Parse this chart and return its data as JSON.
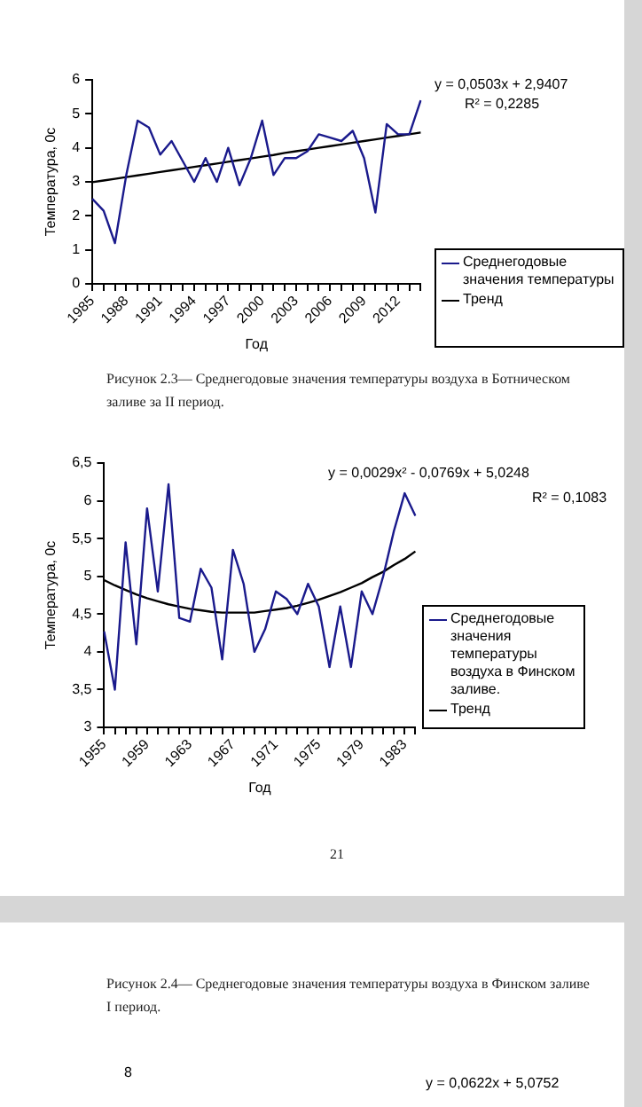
{
  "chart_data": [
    {
      "type": "line",
      "xlabel": "Год",
      "ylabel": "Температура, 0с",
      "legend": "right",
      "marker": "none",
      "line_style": "solid",
      "categories": [
        "1985",
        null,
        null,
        "1988",
        null,
        null,
        "1991",
        null,
        null,
        "1994",
        null,
        null,
        "1997",
        null,
        null,
        "2000",
        null,
        null,
        "2003",
        null,
        null,
        "2006",
        null,
        null,
        "2009",
        null,
        null,
        "2012",
        null,
        null
      ],
      "ylim": [
        0,
        6
      ],
      "yticks": [
        0,
        1,
        2,
        3,
        4,
        5,
        6
      ],
      "series": [
        {
          "name": "Среднегодовые значения температуры",
          "color": "#1a1a8c",
          "values": [
            2.5,
            2.15,
            1.2,
            3.2,
            4.8,
            4.6,
            3.8,
            4.2,
            3.6,
            3.0,
            3.7,
            3.0,
            4.0,
            2.9,
            3.7,
            4.8,
            3.2,
            3.7,
            3.7,
            3.9,
            4.4,
            4.3,
            4.2,
            4.5,
            3.7,
            2.1,
            4.7,
            4.4,
            4.4,
            5.4
          ]
        },
        {
          "name": "Тренд",
          "color": "#000000",
          "values": [
            2.99,
            3.04,
            3.09,
            3.14,
            3.19,
            3.24,
            3.29,
            3.34,
            3.39,
            3.44,
            3.49,
            3.54,
            3.59,
            3.64,
            3.69,
            3.74,
            3.79,
            3.85,
            3.9,
            3.95,
            4.0,
            4.05,
            4.1,
            4.15,
            4.2,
            4.25,
            4.3,
            4.35,
            4.4,
            4.45
          ]
        }
      ],
      "annotations": [
        "y = 0,0503x + 2,9407",
        "R² = 0,2285",
        "Рисунок 2.3— Среднегодовые значения температуры воздуха в Ботническом заливе за II период."
      ]
    },
    {
      "type": "line",
      "xlabel": "Год",
      "ylabel": "Температура, 0с",
      "legend": "right",
      "marker": "none",
      "line_style": "solid",
      "categories": [
        "1955",
        null,
        null,
        null,
        "1959",
        null,
        null,
        null,
        "1963",
        null,
        null,
        null,
        "1967",
        null,
        null,
        null,
        "1971",
        null,
        null,
        null,
        "1975",
        null,
        null,
        null,
        "1979",
        null,
        null,
        null,
        "1983",
        null
      ],
      "ylim": [
        3,
        6.5
      ],
      "yticks": [
        3,
        {
          "value": 3.5,
          "label": "3,5"
        },
        4,
        {
          "value": 4.5,
          "label": "4,5"
        },
        5,
        {
          "value": 5.5,
          "label": "5,5"
        },
        6,
        {
          "value": 6.5,
          "label": "6,5"
        }
      ],
      "series": [
        {
          "name": "Среднегодовые значения температуры воздуха в Финском заливе.",
          "color": "#1a1a8c",
          "values": [
            4.27,
            3.5,
            5.45,
            4.1,
            5.9,
            4.8,
            6.22,
            4.45,
            4.4,
            5.1,
            4.85,
            3.9,
            5.35,
            4.9,
            4.0,
            4.3,
            4.8,
            4.7,
            4.5,
            4.9,
            4.6,
            3.8,
            4.6,
            3.8,
            4.8,
            4.5,
            5.0,
            5.6,
            6.1,
            5.8
          ]
        },
        {
          "name": "Тренд",
          "color": "#000000",
          "values": [
            4.95,
            4.88,
            4.82,
            4.76,
            4.71,
            4.67,
            4.63,
            4.6,
            4.57,
            4.55,
            4.53,
            4.52,
            4.52,
            4.52,
            4.52,
            4.54,
            4.56,
            4.58,
            4.61,
            4.65,
            4.69,
            4.74,
            4.79,
            4.85,
            4.91,
            4.99,
            5.06,
            5.15,
            5.23,
            5.33
          ]
        }
      ],
      "annotations": [
        "y = 0,0029x² - 0,0769x + 5,0248",
        "R² = 0,1083",
        "21",
        "Рисунок 2.4— Среднегодовые значения температуры воздуха в Финском заливе I период."
      ]
    },
    {
      "type": "other",
      "annotations": [
        "8",
        "y = 0,0622x + 5,0752"
      ]
    }
  ]
}
